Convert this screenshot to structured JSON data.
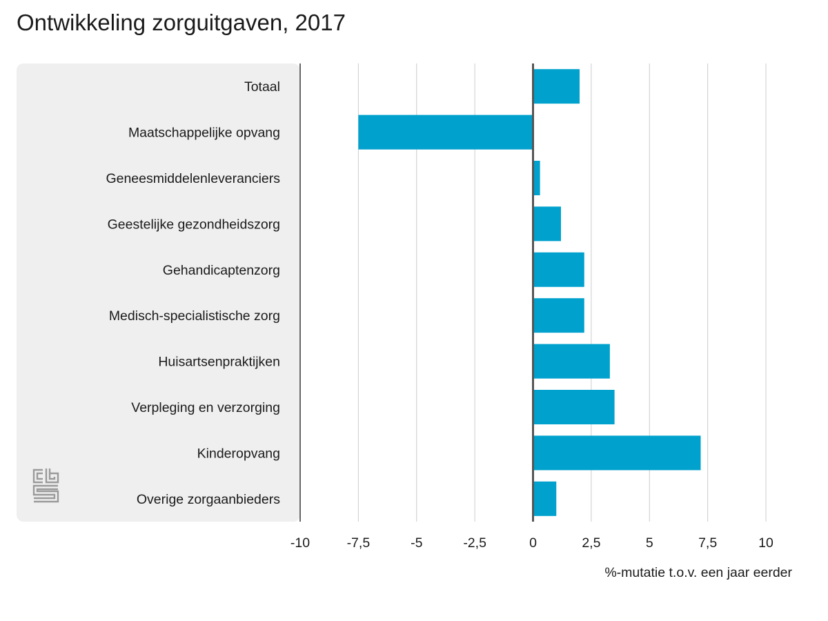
{
  "chart_data": {
    "type": "bar",
    "orientation": "horizontal",
    "title": "Ontwikkeling zorguitgaven, 2017",
    "xlabel": "%-mutatie t.o.v. een jaar eerder",
    "categories": [
      "Totaal",
      "Maatschappelijke opvang",
      "Geneesmiddelenleveranciers",
      "Geestelijke gezondheidszorg",
      "Gehandicaptenzorg",
      "Medisch-specialistische zorg",
      "Huisartsenpraktijken",
      "Verpleging en verzorging",
      "Kinderopvang",
      "Overige zorgaanbieders"
    ],
    "values": [
      2.0,
      -7.5,
      0.3,
      1.2,
      2.2,
      2.2,
      3.3,
      3.5,
      7.2,
      1.0
    ],
    "xlim": [
      -10,
      10
    ],
    "xticks": [
      -10,
      -7.5,
      -5,
      -2.5,
      0,
      2.5,
      5,
      7.5,
      10
    ],
    "xtick_labels": [
      "-10",
      "-7,5",
      "-5",
      "-2,5",
      "0",
      "2,5",
      "5",
      "7,5",
      "10"
    ],
    "grid": "vertical",
    "bar_color": "#00a1cd",
    "label_panel_color": "#efefef"
  },
  "logo": {
    "name": "cbs-logo-icon"
  }
}
